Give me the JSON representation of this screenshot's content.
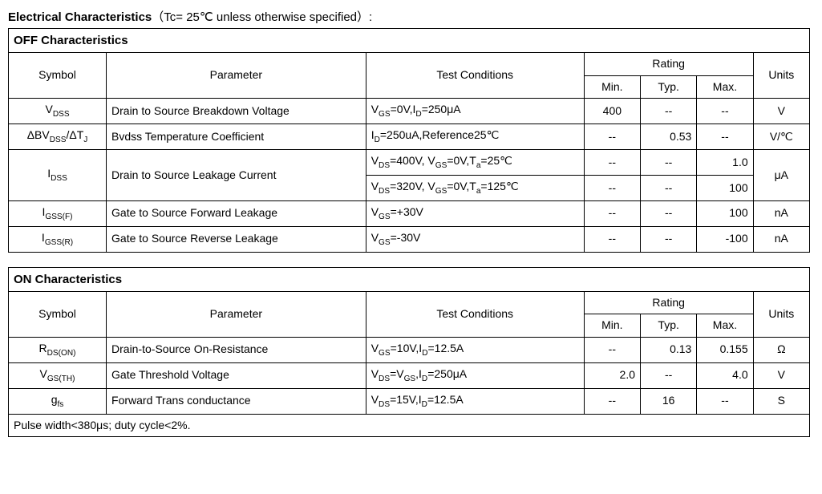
{
  "title": {
    "bold": "Electrical Characteristics",
    "suffix": "（Tc= 25℃  unless otherwise specified）:"
  },
  "colors": {
    "text": "#000000",
    "border": "#000000",
    "background": "#ffffff"
  },
  "headers": {
    "symbol": "Symbol",
    "parameter": "Parameter",
    "conditions": "Test Conditions",
    "rating": "Rating",
    "min": "Min.",
    "typ": "Typ.",
    "max": "Max.",
    "units": "Units"
  },
  "off": {
    "title": "OFF Characteristics",
    "rows": {
      "vdss": {
        "symbol_pre": "V",
        "symbol_sub": "DSS",
        "param": "Drain to Source Breakdown Voltage",
        "cond_pre": "V",
        "cond_sub1": "GS",
        "cond_mid": "=0V,I",
        "cond_sub2": "D",
        "cond_post": "=250μA",
        "min": "400",
        "typ": "--",
        "max": "--",
        "units": "V"
      },
      "dbvdss": {
        "symbol_pre": "ΔBV",
        "symbol_sub1": "DSS",
        "symbol_mid": "/ΔT",
        "symbol_sub2": "J",
        "param": "Bvdss Temperature Coefficient",
        "cond_pre": "I",
        "cond_sub1": "D",
        "cond_post": "=250uA,Reference25℃",
        "min": "--",
        "typ": "0.53",
        "max": "--",
        "units": "V/℃"
      },
      "idss": {
        "symbol_pre": "I",
        "symbol_sub": "DSS",
        "param": "Drain to Source Leakage Current",
        "cond1_pre": "V",
        "cond1_sub1": "DS",
        "cond1_mid1": "=400V, V",
        "cond1_sub2": "GS",
        "cond1_mid2": "=0V,T",
        "cond1_sub3": "a",
        "cond1_post": "=25℃",
        "min1": "--",
        "typ1": "--",
        "max1": "1.0",
        "cond2_pre": "V",
        "cond2_sub1": "DS",
        "cond2_mid1": "=320V, V",
        "cond2_sub2": "GS",
        "cond2_mid2": "=0V,T",
        "cond2_sub3": "a",
        "cond2_post": "=125℃",
        "min2": "--",
        "typ2": "--",
        "max2": "100",
        "units": "μA"
      },
      "igssf": {
        "symbol_pre": "I",
        "symbol_sub": "GSS(F)",
        "param": "Gate to Source Forward Leakage",
        "cond_pre": "V",
        "cond_sub1": "GS",
        "cond_post": "=+30V",
        "min": "--",
        "typ": "--",
        "max": "100",
        "units": "nA"
      },
      "igssr": {
        "symbol_pre": "I",
        "symbol_sub": "GSS(R)",
        "param": "Gate to Source Reverse Leakage",
        "cond_pre": "V",
        "cond_sub1": "GS",
        "cond_post": "=-30V",
        "min": "--",
        "typ": "--",
        "max": "-100",
        "units": "nA"
      }
    }
  },
  "on": {
    "title": "ON Characteristics",
    "rows": {
      "rdson": {
        "symbol_pre": "R",
        "symbol_sub": "DS(ON)",
        "param": "Drain-to-Source On-Resistance",
        "cond_pre": "V",
        "cond_sub1": "GS",
        "cond_mid": "=10V,I",
        "cond_sub2": "D",
        "cond_post": "=12.5A",
        "min": "--",
        "typ": "0.13",
        "max": "0.155",
        "units": "Ω"
      },
      "vgsth": {
        "symbol_pre": "V",
        "symbol_sub": "GS(TH)",
        "param": "Gate Threshold Voltage",
        "cond_pre": "V",
        "cond_sub1": "DS",
        "cond_mid": "=V",
        "cond_sub2": "GS",
        "cond_mid2": ",I",
        "cond_sub3": "D",
        "cond_post": "=250μA",
        "min": "2.0",
        "typ": "--",
        "max": "4.0",
        "units": "V"
      },
      "gfs": {
        "symbol_pre": "g",
        "symbol_sub": "fs",
        "param": "Forward Trans conductance",
        "cond_pre": "V",
        "cond_sub1": "DS",
        "cond_mid": "=15V,I",
        "cond_sub2": "D",
        "cond_post": "=12.5A",
        "min": "--",
        "typ": "16",
        "max": "--",
        "units": "S"
      }
    },
    "note": "Pulse width<380μs; duty cycle<2%."
  }
}
